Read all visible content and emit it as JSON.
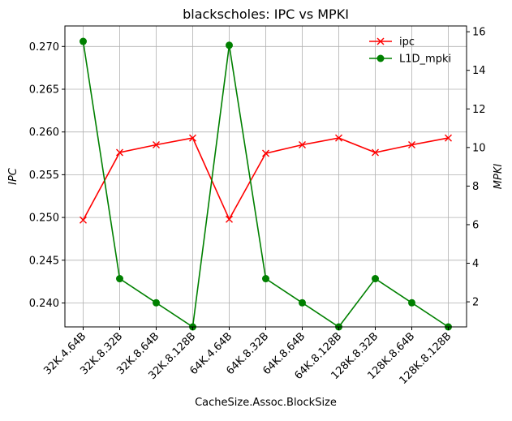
{
  "chart_data": {
    "type": "line",
    "title": "blackscholes: IPC vs MPKI",
    "xlabel": "CacheSize.Assoc.BlockSize",
    "ylabel_left": "IPC",
    "ylabel_right": "MPKI",
    "categories": [
      "32K.4.64B",
      "32K.8.32B",
      "32K.8.64B",
      "32K.8.128B",
      "64K.4.64B",
      "64K.8.32B",
      "64K.8.64B",
      "64K.8.128B",
      "128K.8.32B",
      "128K.8.64B",
      "128K.8.128B"
    ],
    "series": [
      {
        "name": "ipc",
        "axis": "left",
        "color": "#ff0000",
        "marker": "x",
        "values": [
          0.2497,
          0.2576,
          0.2585,
          0.2593,
          0.2498,
          0.2575,
          0.2585,
          0.2593,
          0.2576,
          0.2585,
          0.2593
        ]
      },
      {
        "name": "L1D_mpki",
        "axis": "right",
        "color": "#008000",
        "marker": "circle",
        "values": [
          15.5,
          3.2,
          1.95,
          0.7,
          15.3,
          3.2,
          1.95,
          0.7,
          3.2,
          1.95,
          0.7
        ]
      }
    ],
    "ylim_left": [
      0.2372,
      0.2724
    ],
    "ylim_right": [
      0.7,
      16.3
    ],
    "yticks_left": [
      "0.240",
      "0.245",
      "0.250",
      "0.255",
      "0.260",
      "0.265",
      "0.270"
    ],
    "yticks_right": [
      "2",
      "4",
      "6",
      "8",
      "10",
      "12",
      "14",
      "16"
    ],
    "grid": true,
    "legend_position": "top-right"
  }
}
